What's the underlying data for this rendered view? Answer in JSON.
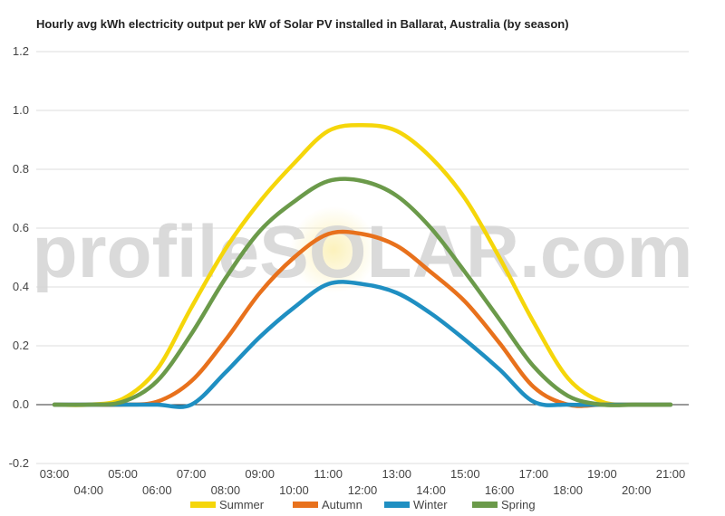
{
  "chart_data": {
    "type": "line",
    "title": "Hourly avg kWh electricity output per kW of Solar PV installed in Ballarat, Australia (by season)",
    "xlabel": "",
    "ylabel": "",
    "ylim": [
      -0.2,
      1.2
    ],
    "yticks": [
      "-0.2",
      "0.0",
      "0.2",
      "0.4",
      "0.6",
      "0.8",
      "1.0",
      "1.2"
    ],
    "xlim": [
      "03:00",
      "21:00"
    ],
    "xticks_upper": [
      "03:00",
      "05:00",
      "07:00",
      "09:00",
      "11:00",
      "13:00",
      "15:00",
      "17:00",
      "19:00",
      "21:00"
    ],
    "xticks_lower": [
      "04:00",
      "06:00",
      "08:00",
      "10:00",
      "12:00",
      "14:00",
      "16:00",
      "18:00",
      "20:00"
    ],
    "grid": true,
    "legend_position": "bottom",
    "watermark": "profileSOLAR.com",
    "x": [
      "03:00",
      "04:00",
      "05:00",
      "06:00",
      "07:00",
      "08:00",
      "09:00",
      "10:00",
      "11:00",
      "12:00",
      "13:00",
      "14:00",
      "15:00",
      "16:00",
      "17:00",
      "18:00",
      "19:00",
      "20:00",
      "21:00"
    ],
    "series": [
      {
        "name": "Summer",
        "color": "#f5d60a",
        "values": [
          0.0,
          0.0,
          0.02,
          0.12,
          0.33,
          0.53,
          0.69,
          0.82,
          0.93,
          0.95,
          0.93,
          0.84,
          0.7,
          0.5,
          0.28,
          0.09,
          0.01,
          0.0,
          0.0
        ]
      },
      {
        "name": "Autumn",
        "color": "#e8711c",
        "values": [
          0.0,
          0.0,
          0.0,
          0.01,
          0.08,
          0.22,
          0.38,
          0.5,
          0.58,
          0.58,
          0.54,
          0.45,
          0.35,
          0.21,
          0.06,
          0.0,
          0.0,
          0.0,
          0.0
        ]
      },
      {
        "name": "Winter",
        "color": "#1f8fc2",
        "values": [
          0.0,
          0.0,
          0.0,
          0.0,
          0.0,
          0.11,
          0.23,
          0.33,
          0.41,
          0.41,
          0.38,
          0.31,
          0.22,
          0.12,
          0.01,
          0.0,
          0.0,
          0.0,
          0.0
        ]
      },
      {
        "name": "Spring",
        "color": "#6b9a4a",
        "values": [
          0.0,
          0.0,
          0.01,
          0.08,
          0.24,
          0.43,
          0.59,
          0.69,
          0.76,
          0.76,
          0.71,
          0.6,
          0.45,
          0.29,
          0.13,
          0.03,
          0.0,
          0.0,
          0.0
        ]
      }
    ]
  }
}
